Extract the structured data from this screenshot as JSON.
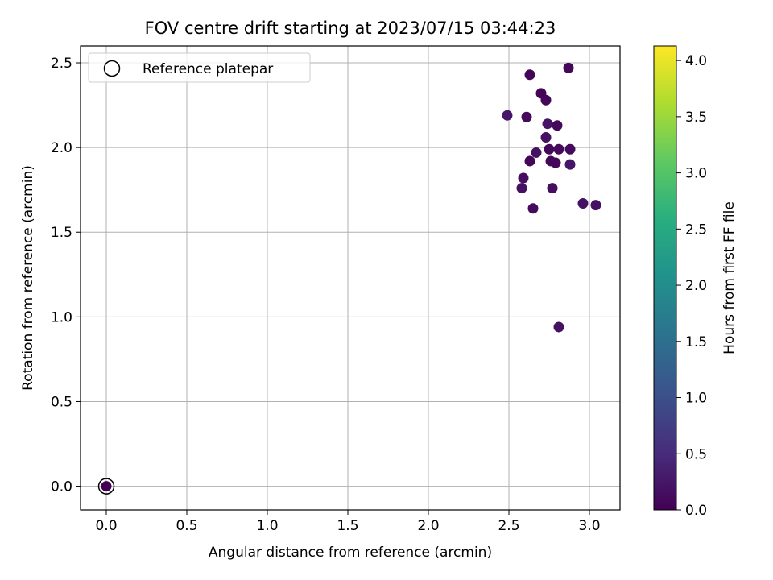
{
  "chart_data": {
    "type": "scatter",
    "title": "FOV centre drift starting at 2023/07/15 03:44:23",
    "xlabel": "Angular distance from reference (arcmin)",
    "ylabel": "Rotation from reference (arcmin)",
    "xlim": [
      -0.16,
      3.19
    ],
    "ylim": [
      -0.14,
      2.6
    ],
    "xticks": [
      "0.0",
      "0.5",
      "1.0",
      "1.5",
      "2.0",
      "2.5",
      "3.0"
    ],
    "yticks": [
      "0.0",
      "0.5",
      "1.0",
      "1.5",
      "2.0",
      "2.5"
    ],
    "grid": true,
    "legend": {
      "placement": "top-left",
      "entries": [
        {
          "label": "Reference platepar",
          "marker": "hollow-circle"
        }
      ]
    },
    "reference_point": {
      "x": 0.0,
      "y": 0.0
    },
    "colorbar": {
      "label": "Hours from first FF file",
      "colormap": "viridis",
      "range": [
        0.0,
        4.13
      ],
      "ticks": [
        "0.0",
        "0.5",
        "1.0",
        "1.5",
        "2.0",
        "2.5",
        "3.0",
        "3.5",
        "4.0"
      ]
    },
    "points": [
      {
        "x": 0.0,
        "y": 0.0,
        "t": 0.0
      },
      {
        "x": 2.63,
        "y": 2.43,
        "t": 0.05
      },
      {
        "x": 2.87,
        "y": 2.47,
        "t": 0.08
      },
      {
        "x": 2.7,
        "y": 2.32,
        "t": 0.05
      },
      {
        "x": 2.73,
        "y": 2.28,
        "t": 0.06
      },
      {
        "x": 2.49,
        "y": 2.19,
        "t": 0.25
      },
      {
        "x": 2.61,
        "y": 2.18,
        "t": 0.1
      },
      {
        "x": 2.74,
        "y": 2.14,
        "t": 0.22
      },
      {
        "x": 2.8,
        "y": 2.13,
        "t": 0.08
      },
      {
        "x": 2.73,
        "y": 2.06,
        "t": 0.2
      },
      {
        "x": 2.67,
        "y": 1.97,
        "t": 0.2
      },
      {
        "x": 2.75,
        "y": 1.99,
        "t": 0.08
      },
      {
        "x": 2.81,
        "y": 1.99,
        "t": 0.1
      },
      {
        "x": 2.88,
        "y": 1.99,
        "t": 0.1
      },
      {
        "x": 2.63,
        "y": 1.92,
        "t": 0.06
      },
      {
        "x": 2.76,
        "y": 1.92,
        "t": 0.08
      },
      {
        "x": 2.79,
        "y": 1.91,
        "t": 0.08
      },
      {
        "x": 2.88,
        "y": 1.9,
        "t": 0.25
      },
      {
        "x": 2.59,
        "y": 1.82,
        "t": 0.15
      },
      {
        "x": 2.58,
        "y": 1.76,
        "t": 0.2
      },
      {
        "x": 2.77,
        "y": 1.76,
        "t": 0.15
      },
      {
        "x": 2.65,
        "y": 1.64,
        "t": 0.12
      },
      {
        "x": 2.96,
        "y": 1.67,
        "t": 0.2
      },
      {
        "x": 3.04,
        "y": 1.66,
        "t": 0.2
      },
      {
        "x": 2.81,
        "y": 0.94,
        "t": 0.2
      }
    ]
  }
}
